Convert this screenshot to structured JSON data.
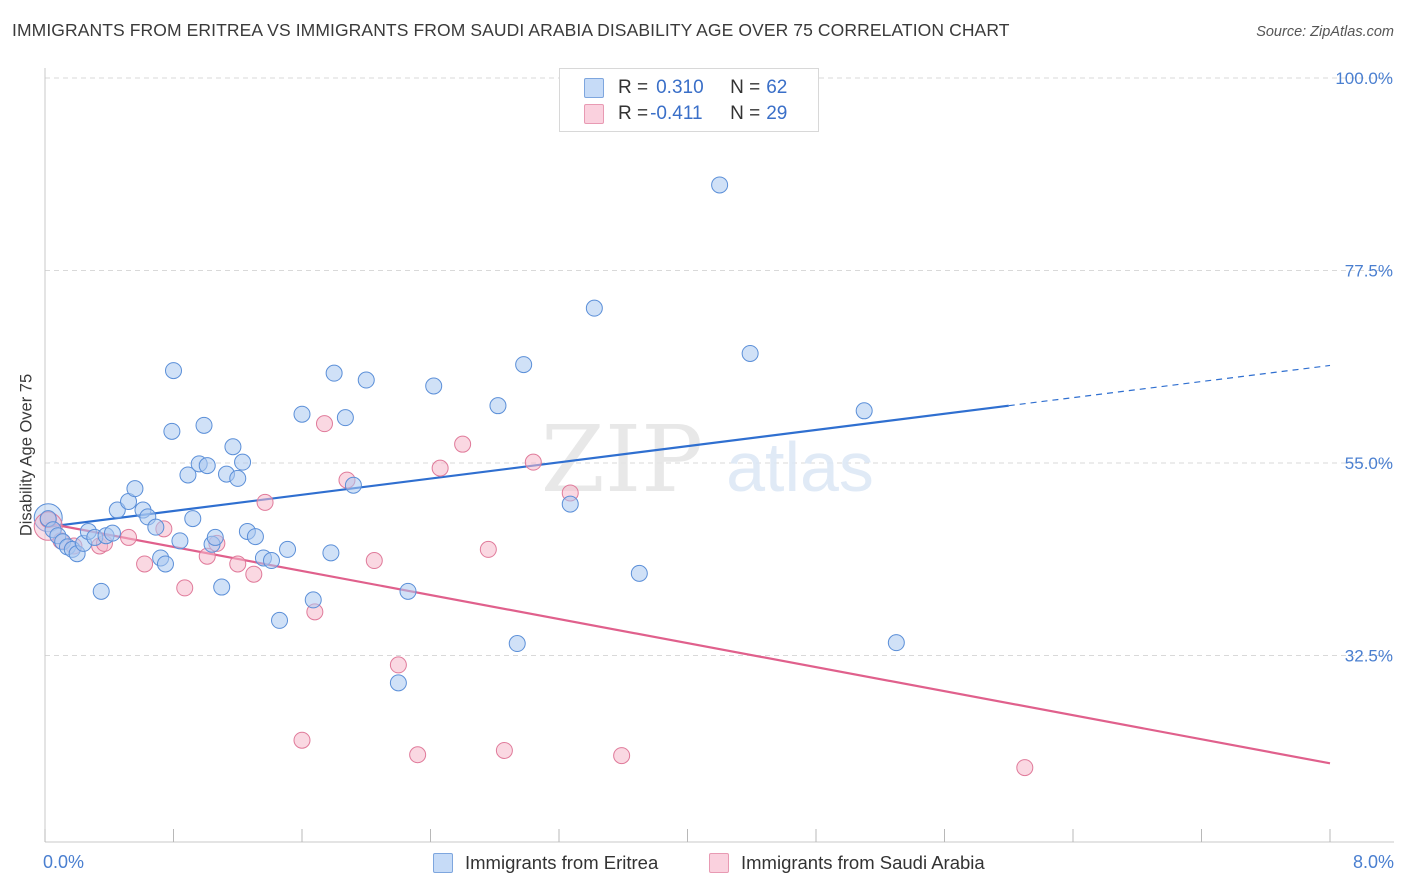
{
  "title": "IMMIGRANTS FROM ERITREA VS IMMIGRANTS FROM SAUDI ARABIA DISABILITY AGE OVER 75 CORRELATION CHART",
  "source": "Source: ZipAtlas.com",
  "watermark": {
    "zip": "ZIP",
    "atlas": "atlas"
  },
  "legend": {
    "rows": [
      {
        "r_label": "R = ",
        "r_value": "0.310",
        "n_label": "N = ",
        "n_value": "62",
        "color": "#a9c8f0"
      },
      {
        "r_label": "R = ",
        "r_value": "-0.411",
        "n_label": "N = ",
        "n_value": "29",
        "color": "#f5b8cb"
      }
    ]
  },
  "bottom_legend": [
    {
      "label": "Immigrants from Eritrea",
      "color": "#a9c8f0"
    },
    {
      "label": "Immigrants from Saudi Arabia",
      "color": "#f5b8cb"
    }
  ],
  "colors": {
    "eritrea_fill": "#a9c8f0",
    "eritrea_stroke": "#5b8fd8",
    "eritrea_line": "#2f6fd0",
    "saudi_fill": "#f5b8cb",
    "saudi_stroke": "#e07a9a",
    "saudi_line": "#e0608c",
    "grid": "#d9d9d9",
    "axis_text": "#4a7fd0"
  },
  "chart_data": {
    "type": "scatter",
    "title": "IMMIGRANTS FROM ERITREA VS IMMIGRANTS FROM SAUDI ARABIA DISABILITY AGE OVER 75 CORRELATION CHART",
    "xlabel": "",
    "ylabel": "Disability Age Over 75",
    "xlim": [
      0,
      8
    ],
    "ylim": [
      13.5,
      105
    ],
    "x_tick_labels": [
      "0.0%",
      "8.0%"
    ],
    "y_ticks": [
      32.5,
      55.0,
      77.5,
      100.0
    ],
    "y_tick_labels": [
      "32.5%",
      "55.0%",
      "77.5%",
      "100.0%"
    ],
    "grid": true,
    "legend_position": "top-center",
    "series": [
      {
        "name": "Immigrants from Eritrea",
        "points": [
          [
            0.02,
            48.5
          ],
          [
            0.05,
            47.2
          ],
          [
            0.08,
            46.5
          ],
          [
            0.11,
            45.8
          ],
          [
            0.14,
            45.2
          ],
          [
            0.17,
            44.9
          ],
          [
            0.2,
            44.4
          ],
          [
            0.24,
            45.6
          ],
          [
            0.27,
            47
          ],
          [
            0.31,
            46.3
          ],
          [
            0.35,
            40
          ],
          [
            0.38,
            46.5
          ],
          [
            0.42,
            46.8
          ],
          [
            0.45,
            49.5
          ],
          [
            0.52,
            50.5
          ],
          [
            0.56,
            52
          ],
          [
            0.61,
            49.5
          ],
          [
            0.64,
            48.7
          ],
          [
            0.69,
            47.5
          ],
          [
            0.72,
            43.9
          ],
          [
            0.75,
            43.2
          ],
          [
            0.79,
            58.7
          ],
          [
            0.8,
            65.8
          ],
          [
            0.84,
            45.9
          ],
          [
            0.89,
            53.6
          ],
          [
            0.92,
            48.5
          ],
          [
            0.96,
            54.9
          ],
          [
            0.99,
            59.4
          ],
          [
            1.01,
            54.7
          ],
          [
            1.04,
            45.5
          ],
          [
            1.06,
            46.3
          ],
          [
            1.1,
            40.5
          ],
          [
            1.13,
            53.7
          ],
          [
            1.17,
            56.9
          ],
          [
            1.2,
            53.2
          ],
          [
            1.23,
            55.1
          ],
          [
            1.26,
            47
          ],
          [
            1.31,
            46.4
          ],
          [
            1.36,
            43.9
          ],
          [
            1.41,
            43.6
          ],
          [
            1.46,
            36.6
          ],
          [
            1.51,
            44.9
          ],
          [
            1.6,
            60.7
          ],
          [
            1.67,
            39
          ],
          [
            1.78,
            44.5
          ],
          [
            1.8,
            65.5
          ],
          [
            1.87,
            60.3
          ],
          [
            1.92,
            52.4
          ],
          [
            2.0,
            64.7
          ],
          [
            2.26,
            40
          ],
          [
            2.2,
            29.3
          ],
          [
            2.42,
            64
          ],
          [
            2.82,
            61.7
          ],
          [
            2.94,
            33.9
          ],
          [
            2.98,
            66.5
          ],
          [
            3.27,
            50.2
          ],
          [
            3.42,
            73.1
          ],
          [
            3.7,
            42.1
          ],
          [
            4.2,
            87.5
          ],
          [
            4.39,
            67.8
          ],
          [
            5.1,
            61.1
          ],
          [
            5.3,
            34
          ]
        ],
        "trend": {
          "x": [
            0,
            6.0
          ],
          "y": [
            47.5,
            61.7
          ],
          "dashed_extension": {
            "x": [
              6.0,
              8.0
            ],
            "y": [
              61.7,
              66.4
            ]
          }
        }
      },
      {
        "name": "Immigrants from Saudi Arabia",
        "points": [
          [
            0.02,
            48.4
          ],
          [
            0.1,
            45.9
          ],
          [
            0.18,
            45.3
          ],
          [
            0.34,
            45.3
          ],
          [
            0.37,
            45.6
          ],
          [
            0.52,
            46.3
          ],
          [
            0.62,
            43.2
          ],
          [
            0.74,
            47.3
          ],
          [
            0.87,
            40.4
          ],
          [
            1.01,
            44.1
          ],
          [
            1.07,
            45.6
          ],
          [
            1.2,
            43.2
          ],
          [
            1.3,
            42
          ],
          [
            1.37,
            50.4
          ],
          [
            1.6,
            22.6
          ],
          [
            1.68,
            37.6
          ],
          [
            1.74,
            59.6
          ],
          [
            1.88,
            53
          ],
          [
            2.05,
            43.6
          ],
          [
            2.2,
            31.4
          ],
          [
            2.32,
            20.9
          ],
          [
            2.46,
            54.4
          ],
          [
            2.6,
            57.2
          ],
          [
            2.76,
            44.9
          ],
          [
            2.86,
            21.4
          ],
          [
            3.04,
            55.1
          ],
          [
            3.27,
            51.5
          ],
          [
            3.59,
            20.8
          ],
          [
            6.1,
            19.4
          ]
        ],
        "trend": {
          "x": [
            0,
            8.0
          ],
          "y": [
            48.0,
            19.9
          ]
        }
      }
    ]
  }
}
